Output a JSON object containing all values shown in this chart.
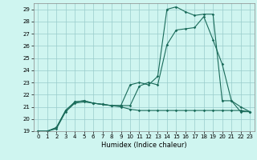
{
  "xlabel": "Humidex (Indice chaleur)",
  "background_color": "#cff5f0",
  "grid_color": "#99cccc",
  "line_color": "#1a6b5a",
  "xlim": [
    -0.5,
    23.5
  ],
  "ylim": [
    19,
    29.5
  ],
  "xticks": [
    0,
    1,
    2,
    3,
    4,
    5,
    6,
    7,
    8,
    9,
    10,
    11,
    12,
    13,
    14,
    15,
    16,
    17,
    18,
    19,
    20,
    21,
    22,
    23
  ],
  "yticks": [
    19,
    20,
    21,
    22,
    23,
    24,
    25,
    26,
    27,
    28,
    29
  ],
  "line1_x": [
    0,
    1,
    2,
    3,
    4,
    5,
    6,
    7,
    8,
    9,
    10,
    11,
    12,
    13,
    14,
    15,
    16,
    17,
    18,
    19,
    20,
    21,
    22,
    23
  ],
  "line1_y": [
    19,
    19,
    19.3,
    20.7,
    21.4,
    21.5,
    21.3,
    21.2,
    21.1,
    21.1,
    22.8,
    23.0,
    22.8,
    23.5,
    29.0,
    29.2,
    28.8,
    28.5,
    28.6,
    28.6,
    21.5,
    21.5,
    20.6,
    20.6
  ],
  "line2_x": [
    0,
    1,
    2,
    3,
    4,
    5,
    6,
    7,
    8,
    9,
    10,
    11,
    12,
    13,
    14,
    15,
    16,
    17,
    18,
    19,
    20,
    21,
    22,
    23
  ],
  "line2_y": [
    19,
    19,
    19.3,
    20.7,
    21.4,
    21.5,
    21.3,
    21.2,
    21.1,
    21.1,
    21.1,
    22.7,
    23.0,
    22.8,
    26.1,
    27.3,
    27.4,
    27.5,
    28.4,
    26.5,
    24.5,
    21.5,
    21.0,
    20.6
  ],
  "line3_x": [
    0,
    1,
    2,
    3,
    4,
    5,
    6,
    7,
    8,
    9,
    10,
    11,
    12,
    13,
    14,
    15,
    16,
    17,
    18,
    19,
    20,
    21,
    22,
    23
  ],
  "line3_y": [
    19,
    19,
    19.2,
    20.6,
    21.3,
    21.4,
    21.3,
    21.2,
    21.1,
    21.0,
    20.8,
    20.7,
    20.7,
    20.7,
    20.7,
    20.7,
    20.7,
    20.7,
    20.7,
    20.7,
    20.7,
    20.7,
    20.7,
    20.6
  ]
}
